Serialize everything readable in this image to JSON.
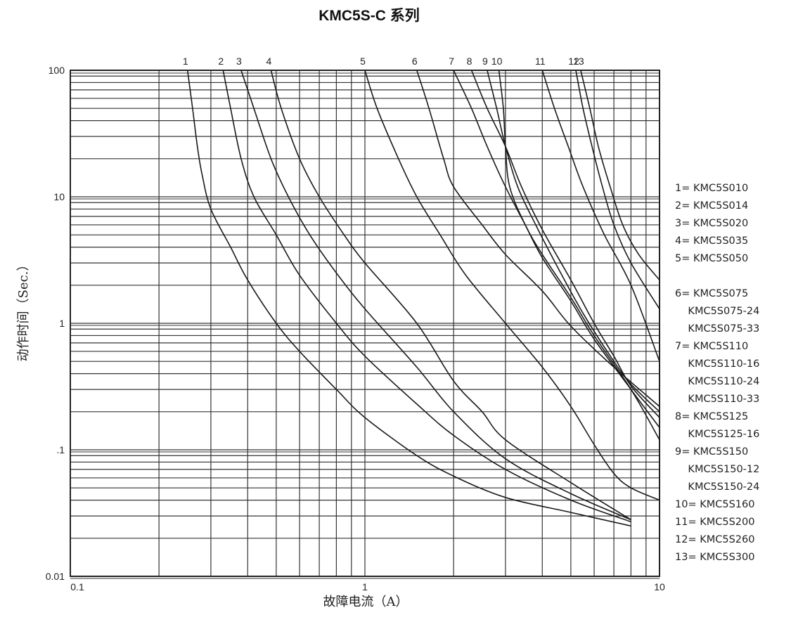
{
  "chart_data": {
    "type": "line",
    "title": "KMC5S-C 系列",
    "xlabel": "故障电流（A）",
    "ylabel": "动作时间（Sec.）",
    "x_scale": "log",
    "y_scale": "log",
    "xlim": [
      0.1,
      10
    ],
    "ylim": [
      0.01,
      100
    ],
    "x_ticks": [
      {
        "value": 0.1,
        "label": "0.1"
      },
      {
        "value": 1,
        "label": "1"
      },
      {
        "value": 10,
        "label": "10"
      }
    ],
    "y_ticks": [
      {
        "value": 100,
        "label": "100"
      },
      {
        "value": 10,
        "label": "10"
      },
      {
        "value": 1,
        "label": "1"
      },
      {
        "value": 0.1,
        "label": ".1"
      },
      {
        "value": 0.01,
        "label": "0.01"
      }
    ],
    "grid": true,
    "legend_position": "right",
    "series": [
      {
        "name": "1",
        "points": [
          [
            0.25,
            100
          ],
          [
            0.26,
            50
          ],
          [
            0.27,
            25
          ],
          [
            0.28,
            15
          ],
          [
            0.3,
            8
          ],
          [
            0.35,
            4
          ],
          [
            0.4,
            2.2
          ],
          [
            0.5,
            1
          ],
          [
            0.6,
            0.6
          ],
          [
            0.8,
            0.3
          ],
          [
            1,
            0.18
          ],
          [
            1.5,
            0.09
          ],
          [
            2,
            0.062
          ],
          [
            3,
            0.042
          ],
          [
            5,
            0.032
          ],
          [
            8,
            0.025
          ]
        ]
      },
      {
        "name": "2",
        "points": [
          [
            0.33,
            100
          ],
          [
            0.35,
            50
          ],
          [
            0.38,
            20
          ],
          [
            0.42,
            10
          ],
          [
            0.5,
            5
          ],
          [
            0.6,
            2.4
          ],
          [
            0.8,
            1
          ],
          [
            1,
            0.55
          ],
          [
            1.5,
            0.23
          ],
          [
            2,
            0.13
          ],
          [
            3,
            0.07
          ],
          [
            5,
            0.04
          ],
          [
            8,
            0.027
          ]
        ]
      },
      {
        "name": "3",
        "points": [
          [
            0.38,
            100
          ],
          [
            0.42,
            50
          ],
          [
            0.48,
            20
          ],
          [
            0.55,
            10
          ],
          [
            0.65,
            5
          ],
          [
            0.8,
            2.5
          ],
          [
            1,
            1.3
          ],
          [
            1.5,
            0.45
          ],
          [
            2,
            0.2
          ],
          [
            3,
            0.085
          ],
          [
            5,
            0.045
          ],
          [
            8,
            0.028
          ]
        ]
      },
      {
        "name": "4",
        "points": [
          [
            0.48,
            100
          ],
          [
            0.52,
            50
          ],
          [
            0.6,
            20
          ],
          [
            0.7,
            10
          ],
          [
            0.85,
            5
          ],
          [
            1,
            3
          ],
          [
            1.5,
            1
          ],
          [
            2,
            0.35
          ],
          [
            2.5,
            0.2
          ],
          [
            3,
            0.12
          ],
          [
            5,
            0.055
          ],
          [
            8,
            0.028
          ]
        ]
      },
      {
        "name": "5",
        "points": [
          [
            1,
            100
          ],
          [
            1.1,
            50
          ],
          [
            1.3,
            20
          ],
          [
            1.5,
            10
          ],
          [
            1.8,
            5
          ],
          [
            2.2,
            2.4
          ],
          [
            3,
            1
          ],
          [
            4,
            0.45
          ],
          [
            5,
            0.22
          ],
          [
            6,
            0.11
          ],
          [
            7,
            0.065
          ],
          [
            8,
            0.05
          ],
          [
            10,
            0.04
          ]
        ]
      },
      {
        "name": "6",
        "points": [
          [
            1.5,
            100
          ],
          [
            1.65,
            50
          ],
          [
            1.85,
            20
          ],
          [
            2,
            12
          ],
          [
            2.5,
            6
          ],
          [
            3,
            3.5
          ],
          [
            4,
            1.8
          ],
          [
            5,
            0.95
          ],
          [
            7,
            0.45
          ],
          [
            10,
            0.22
          ]
        ]
      },
      {
        "name": "7",
        "points": [
          [
            2,
            100
          ],
          [
            2.3,
            50
          ],
          [
            2.6,
            25
          ],
          [
            3,
            12
          ],
          [
            3.5,
            6
          ],
          [
            4,
            3.3
          ],
          [
            5,
            1.5
          ],
          [
            6,
            0.75
          ],
          [
            8,
            0.3
          ],
          [
            10,
            0.15
          ]
        ]
      },
      {
        "name": "8",
        "points": [
          [
            2.3,
            100
          ],
          [
            2.6,
            50
          ],
          [
            3,
            25
          ],
          [
            3.4,
            12
          ],
          [
            4,
            5.5
          ],
          [
            5,
            2.2
          ],
          [
            6,
            1
          ],
          [
            7,
            0.55
          ],
          [
            8,
            0.32
          ],
          [
            10,
            0.18
          ]
        ]
      },
      {
        "name": "9",
        "points": [
          [
            2.6,
            100
          ],
          [
            2.8,
            50
          ],
          [
            3,
            25
          ],
          [
            3.3,
            12
          ],
          [
            3.8,
            6
          ],
          [
            4.5,
            2.8
          ],
          [
            5.5,
            1.2
          ],
          [
            7,
            0.5
          ],
          [
            8,
            0.33
          ],
          [
            10,
            0.2
          ]
        ]
      },
      {
        "name": "10",
        "points": [
          [
            2.85,
            100
          ],
          [
            2.95,
            50
          ],
          [
            3,
            25
          ],
          [
            3.1,
            12
          ],
          [
            3.5,
            6
          ],
          [
            4,
            3.5
          ],
          [
            5,
            1.6
          ],
          [
            6,
            0.8
          ],
          [
            8,
            0.3
          ],
          [
            10,
            0.12
          ]
        ]
      },
      {
        "name": "11",
        "points": [
          [
            4,
            100
          ],
          [
            4.4,
            50
          ],
          [
            4.9,
            25
          ],
          [
            5.5,
            12
          ],
          [
            6.5,
            5
          ],
          [
            8,
            2
          ],
          [
            10,
            0.5
          ]
        ]
      },
      {
        "name": "12",
        "points": [
          [
            5.2,
            100
          ],
          [
            5.5,
            50
          ],
          [
            5.9,
            25
          ],
          [
            6.4,
            12
          ],
          [
            7,
            6
          ],
          [
            8,
            3
          ],
          [
            10,
            1.3
          ]
        ]
      },
      {
        "name": "13",
        "points": [
          [
            5.4,
            100
          ],
          [
            5.8,
            50
          ],
          [
            6.2,
            25
          ],
          [
            6.8,
            12
          ],
          [
            7.5,
            6
          ],
          [
            8.5,
            3.5
          ],
          [
            10,
            2.2
          ]
        ]
      }
    ]
  },
  "legend": [
    "1= KMC5S010",
    "2= KMC5S014",
    "3= KMC5S020",
    "4= KMC5S035",
    "5= KMC5S050",
    "6= KMC5S075",
    "    KMC5S075-24",
    "    KMC5S075-33",
    "7= KMC5S110",
    "    KMC5S110-16",
    "    KMC5S110-24",
    "    KMC5S110-33",
    "8= KMC5S125",
    "    KMC5S125-16",
    "9= KMC5S150",
    "    KMC5S150-12",
    "    KMC5S150-24",
    "10= KMC5S160",
    "11= KMC5S200",
    "12= KMC5S260",
    "13= KMC5S300"
  ]
}
